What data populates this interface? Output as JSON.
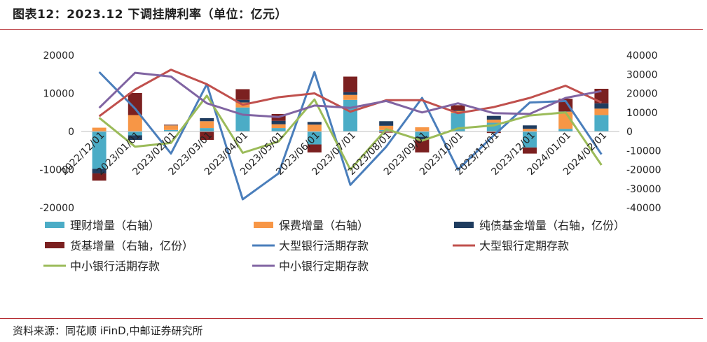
{
  "title": "图表12：2023.12 下调挂牌利率（单位：亿元）",
  "source": "资料来源：同花顺 iFinD,中邮证券研究所",
  "chart_data": {
    "type": "bar",
    "subtype": "stacked bar + line, dual axis",
    "categories": [
      "2022/12/01",
      "2023/01/01",
      "2023/02/01",
      "2023/03/01",
      "2023/04/01",
      "2023/05/01",
      "2023/06/01",
      "2023/07/01",
      "2023/08/01",
      "2023/09/01",
      "2023/10/01",
      "2023/11/01",
      "2023/12/01",
      "2024/01/01",
      "2024/02/01"
    ],
    "y_left": {
      "ylim": [
        -20000,
        20000
      ],
      "ticks": [
        -20000,
        -10000,
        0,
        10000,
        20000
      ],
      "tick_labels": [
        "-20000",
        "-10000",
        "0",
        "10000",
        "20000"
      ]
    },
    "y_right": {
      "ylim": [
        -40000,
        40000
      ],
      "ticks": [
        -40000,
        -30000,
        -20000,
        -10000,
        0,
        10000,
        20000,
        30000,
        40000
      ],
      "tick_labels": [
        "-40000",
        "-30000",
        "-20000",
        "-10000",
        "0",
        "10000",
        "20000",
        "30000",
        "40000"
      ]
    },
    "bar_series": [
      {
        "name": "理财增量（右轴）",
        "color": "#4bacc6",
        "axis": "right",
        "values": [
          -19600,
          -2000,
          800,
          1800,
          12600,
          1800,
          -6800,
          16600,
          800,
          -2800,
          9600,
          4600,
          -8400,
          1400,
          8600
        ]
      },
      {
        "name": "保费增量（右轴）",
        "color": "#f79646",
        "axis": "right",
        "values": [
          2000,
          8600,
          2400,
          3600,
          2600,
          2000,
          3600,
          2600,
          2200,
          2200,
          1200,
          1600,
          1400,
          9000,
          3400
        ]
      },
      {
        "name": "纯债基金增量（右轴，亿份）",
        "color": "#1f3c5f",
        "axis": "right",
        "values": [
          -2400,
          -2400,
          200,
          1600,
          1400,
          1800,
          1400,
          1400,
          2400,
          -1400,
          400,
          2000,
          1800,
          200,
          2800
        ]
      },
      {
        "name": "货基增量（右轴，亿份）",
        "color": "#7b2020",
        "axis": "right",
        "values": [
          -3800,
          11600,
          200,
          -4400,
          5600,
          3600,
          -4200,
          8200,
          -600,
          -6800,
          2600,
          -800,
          -3200,
          6600,
          7600
        ]
      }
    ],
    "line_series": [
      {
        "name": "大型银行活期存款",
        "color": "#4a7ebb",
        "axis": "left",
        "values": [
          15600,
          6000,
          -5800,
          12400,
          -17800,
          -11000,
          15600,
          -14000,
          -4000,
          8800,
          -10000,
          -1000,
          7600,
          8000,
          -6000
        ]
      },
      {
        "name": "大型银行定期存款",
        "color": "#c0504d",
        "axis": "left",
        "values": [
          4000,
          11000,
          16200,
          12400,
          7000,
          9000,
          10000,
          5200,
          8200,
          8200,
          4800,
          6400,
          8800,
          12000,
          7600
        ]
      },
      {
        "name": "中小银行活期存款",
        "color": "#9bbb59",
        "axis": "left",
        "values": [
          3600,
          -4000,
          -3000,
          9400,
          -5600,
          -2600,
          8400,
          -10000,
          600,
          -2400,
          800,
          1600,
          4200,
          5000,
          -8800
        ]
      },
      {
        "name": "中小银行定期存款",
        "color": "#8064a2",
        "axis": "left",
        "values": [
          6200,
          15400,
          14400,
          7400,
          4400,
          3800,
          6800,
          6200,
          8000,
          5000,
          7400,
          4800,
          4600,
          8800,
          10600
        ]
      }
    ],
    "legend": [
      "理财增量（右轴）",
      "保费增量（右轴）",
      "纯债基金增量（右轴，亿份）",
      "货基增量（右轴，亿份）",
      "大型银行活期存款",
      "大型银行定期存款",
      "中小银行活期存款",
      "中小银行定期存款"
    ],
    "legend_placement": "bottom",
    "grid": false
  }
}
